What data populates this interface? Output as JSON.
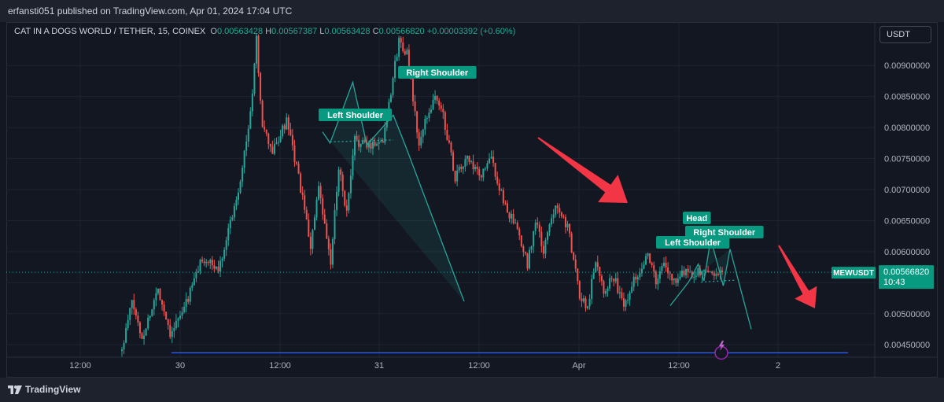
{
  "header": {
    "publisher_text": "erfansti051 published on TradingView.com, Apr 01, 2024 17:04 UTC"
  },
  "legend": {
    "symbol": "CAT IN A DOGS WORLD / TETHER, 15, COINEX",
    "open_key": "O",
    "open": "0.00563428",
    "high_key": "H",
    "high": "0.00567387",
    "low_key": "L",
    "low": "0.00563428",
    "close_key": "C",
    "close": "0.00566820",
    "change": "+0.00003392 (+0.60%)"
  },
  "toolbar": {
    "currency_label": "USDT"
  },
  "footer": {
    "brand": "TradingView"
  },
  "colors": {
    "background": "#131722",
    "up": "#26a69a",
    "down": "#ef5350",
    "pattern": "#26a69a",
    "pattern_fill": "#26a69a",
    "arrow": "#f23645",
    "support_line": "#2962ff",
    "price_line": "#26a69a"
  },
  "chart_data": {
    "type": "candlestick",
    "ylim": [
      0.0043,
      0.0097
    ],
    "y_ticks": [
      "0.00900000",
      "0.00850000",
      "0.00800000",
      "0.00750000",
      "0.00700000",
      "0.00650000",
      "0.00600000",
      "0.00550000",
      "0.00500000",
      "0.00450000"
    ],
    "x_ticks": [
      "12:00",
      "30",
      "12:00",
      "31",
      "12:00",
      "Apr",
      "12:00",
      "2"
    ],
    "current_price": {
      "symbol": "MEWUSDT",
      "value": "0.00566820",
      "countdown": "10:43"
    },
    "support_level": 0.00437,
    "candle_count": 300,
    "path": [
      [
        0,
        0.0044
      ],
      [
        5,
        0.0052
      ],
      [
        10,
        0.0046
      ],
      [
        18,
        0.0054
      ],
      [
        24,
        0.0047
      ],
      [
        30,
        0.005
      ],
      [
        40,
        0.0059
      ],
      [
        48,
        0.0057
      ],
      [
        58,
        0.007
      ],
      [
        64,
        0.0082
      ],
      [
        67,
        0.0094
      ],
      [
        70,
        0.008
      ],
      [
        75,
        0.0076
      ],
      [
        82,
        0.0081
      ],
      [
        88,
        0.0072
      ],
      [
        94,
        0.0061
      ],
      [
        98,
        0.007
      ],
      [
        104,
        0.0058
      ],
      [
        108,
        0.0074
      ],
      [
        112,
        0.0066
      ],
      [
        116,
        0.0078
      ],
      [
        122,
        0.0077
      ],
      [
        130,
        0.0078
      ],
      [
        138,
        0.0094
      ],
      [
        142,
        0.0092
      ],
      [
        148,
        0.0077
      ],
      [
        152,
        0.0082
      ],
      [
        156,
        0.0085
      ],
      [
        160,
        0.0082
      ],
      [
        166,
        0.0072
      ],
      [
        172,
        0.0075
      ],
      [
        178,
        0.0072
      ],
      [
        184,
        0.0075
      ],
      [
        190,
        0.0068
      ],
      [
        196,
        0.0064
      ],
      [
        202,
        0.0058
      ],
      [
        206,
        0.0065
      ],
      [
        210,
        0.006
      ],
      [
        216,
        0.0068
      ],
      [
        222,
        0.0064
      ],
      [
        228,
        0.0053
      ],
      [
        232,
        0.0051
      ],
      [
        236,
        0.0059
      ],
      [
        240,
        0.0054
      ],
      [
        245,
        0.0056
      ],
      [
        250,
        0.0051
      ],
      [
        254,
        0.0055
      ],
      [
        258,
        0.0057
      ],
      [
        262,
        0.006
      ],
      [
        266,
        0.0055
      ],
      [
        270,
        0.0058
      ],
      [
        275,
        0.0055
      ],
      [
        278,
        0.0056682
      ]
    ],
    "patterns": [
      {
        "kind": "head_and_shoulders",
        "labels": [
          "Left Shoulder",
          "Right Shoulder"
        ],
        "points": [
          [
            0.0079,
            0.00793
          ],
          [
            0.00798,
            0.00775
          ],
          [
            0.00822,
            0.00873
          ],
          [
            0.00837,
            0.00772
          ],
          [
            0.00865,
            0.0082
          ],
          [
            0.00878,
            0.0077
          ],
          [
            0.0094,
            0.0052
          ]
        ],
        "neckline": [
          0.00798,
          0.00777,
          0.00865,
          0.0078
        ]
      },
      {
        "kind": "head_and_shoulders",
        "labels": [
          "Head",
          "Left Shoulder",
          "Right Shoulder"
        ],
        "points": [
          [
            0.00703,
            0.00513
          ],
          [
            0.00722,
            0.00551
          ],
          [
            0.00732,
            0.0058
          ],
          [
            0.00738,
            0.00553
          ],
          [
            0.00745,
            0.00621
          ],
          [
            0.00758,
            0.00545
          ],
          [
            0.00765,
            0.00604
          ],
          [
            0.00787,
            0.00475
          ]
        ],
        "neckline": [
          0.00735,
          0.00551,
          0.0077,
          0.00554
        ]
      }
    ],
    "annotations": [
      {
        "type": "arrow",
        "direction": "down-right"
      },
      {
        "type": "arrow",
        "direction": "down-right"
      }
    ]
  }
}
